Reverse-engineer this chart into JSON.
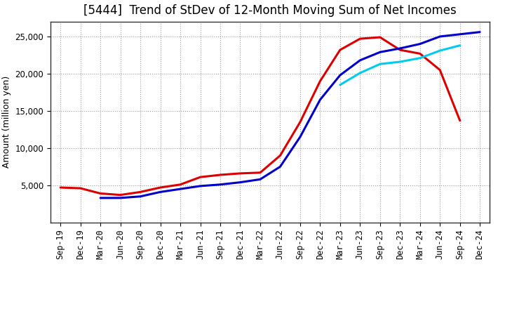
{
  "title": "[5444]  Trend of StDev of 12-Month Moving Sum of Net Incomes",
  "ylabel": "Amount (million yen)",
  "background_color": "#ffffff",
  "plot_bg_color": "#ffffff",
  "grid_color": "#999999",
  "x_labels": [
    "Sep-19",
    "Dec-19",
    "Mar-20",
    "Jun-20",
    "Sep-20",
    "Dec-20",
    "Mar-21",
    "Jun-21",
    "Sep-21",
    "Dec-21",
    "Mar-22",
    "Jun-22",
    "Sep-22",
    "Dec-22",
    "Mar-23",
    "Jun-23",
    "Sep-23",
    "Dec-23",
    "Mar-24",
    "Jun-24",
    "Sep-24",
    "Dec-24"
  ],
  "series": {
    "3 Years": {
      "color": "#dd0000",
      "data": [
        4700,
        4600,
        3900,
        3700,
        4100,
        4700,
        5100,
        6100,
        6400,
        6600,
        6700,
        9000,
        13500,
        19000,
        23200,
        24700,
        24900,
        23200,
        22700,
        20500,
        13700,
        null
      ]
    },
    "5 Years": {
      "color": "#0000cc",
      "data": [
        null,
        null,
        3300,
        3300,
        3500,
        4100,
        4500,
        4900,
        5100,
        5400,
        5800,
        7500,
        11500,
        16500,
        19800,
        21800,
        22900,
        23400,
        24000,
        25000,
        25300,
        25600
      ]
    },
    "7 Years": {
      "color": "#00ccee",
      "data": [
        null,
        null,
        null,
        null,
        null,
        null,
        null,
        null,
        null,
        null,
        null,
        null,
        null,
        null,
        18500,
        20100,
        21300,
        21600,
        22100,
        23100,
        23800,
        null
      ]
    },
    "10 Years": {
      "color": "#009900",
      "data": [
        null,
        null,
        null,
        null,
        null,
        null,
        null,
        null,
        null,
        null,
        null,
        null,
        null,
        null,
        null,
        null,
        null,
        null,
        null,
        null,
        null,
        null
      ]
    }
  },
  "ylim": [
    0,
    27000
  ],
  "yticks": [
    5000,
    10000,
    15000,
    20000,
    25000
  ],
  "legend_loc": "lower center",
  "title_fontsize": 12,
  "axis_fontsize": 9,
  "tick_fontsize": 8.5
}
